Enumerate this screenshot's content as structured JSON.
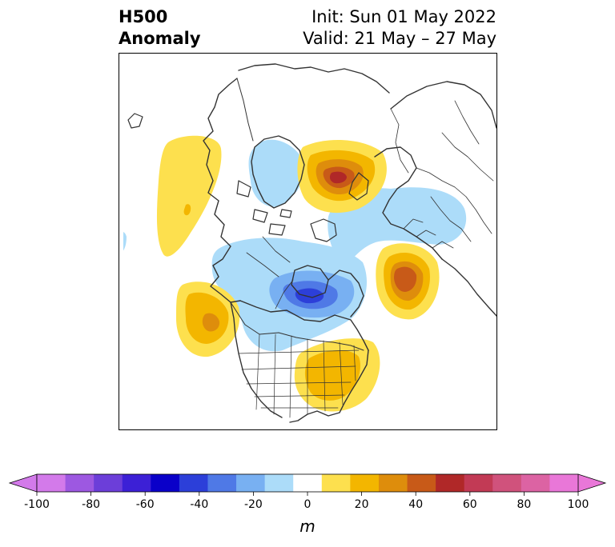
{
  "title": {
    "left_line1": "H500",
    "left_line2": "Anomaly",
    "right_line1": "Init: Sun 01 May 2022",
    "right_line2": "Valid: 21 May – 27 May"
  },
  "colorbar": {
    "label": "m",
    "extend": "both",
    "levels": [
      -100,
      -90,
      -80,
      -70,
      -60,
      -50,
      -40,
      -30,
      -20,
      -10,
      10,
      20,
      30,
      40,
      50,
      60,
      70,
      80,
      90,
      100
    ],
    "colors": [
      "#d37aea",
      "#9d58e1",
      "#6c3ed9",
      "#3c20d6",
      "#0a00c9",
      "#2c3fd9",
      "#4f79e6",
      "#78b0f2",
      "#acdcf9",
      "#ffffff",
      "#fde04e",
      "#f3b600",
      "#de8d0c",
      "#c85a18",
      "#b02828",
      "#c23a55",
      "#d0527c",
      "#dc63a3",
      "#e977d8"
    ],
    "under_color": "#d37aea",
    "over_color": "#e977d8",
    "ticks": [
      -100,
      -80,
      -60,
      -40,
      -20,
      0,
      20,
      40,
      60,
      80,
      100
    ]
  },
  "map": {
    "projection": "north polar stereographic",
    "region": "North America / North Atlantic",
    "features": [
      "coastlines",
      "country borders",
      "US state and Canadian province borders"
    ]
  }
}
